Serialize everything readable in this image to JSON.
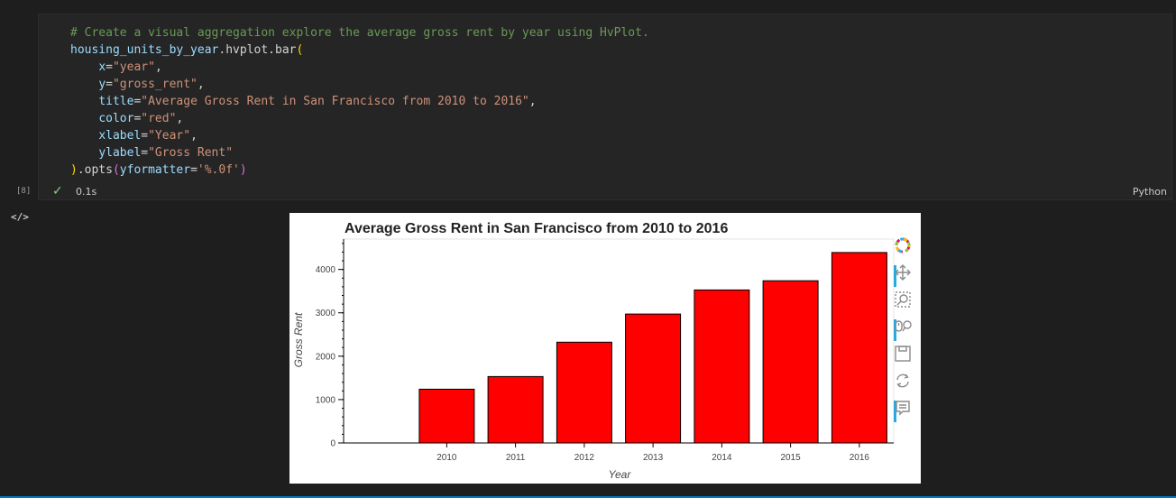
{
  "cell": {
    "code_lines": [
      "# Create a visual aggregation explore the average gross rent by year using HvPlot.",
      "housing_units_by_year.hvplot.bar(",
      "    x=\"year\",",
      "    y=\"gross_rent\",",
      "    title=\"Average Gross Rent in San Francisco from 2010 to 2016\",",
      "    color=\"red\",",
      "    xlabel=\"Year\",",
      "    ylabel=\"Gross Rent\"",
      ").opts(yformatter='%.0f')"
    ],
    "execution_count": "[8]",
    "status_icon": "check-icon",
    "exec_time": "0.1s",
    "language": "Python"
  },
  "output": {
    "icon": "code-icon",
    "icon_text": "</>"
  },
  "chart_data": {
    "type": "bar",
    "title": "Average Gross Rent in San Francisco from 2010 to 2016",
    "xlabel": "Year",
    "ylabel": "Gross Rent",
    "categories": [
      "2010",
      "2011",
      "2012",
      "2013",
      "2014",
      "2015",
      "2016"
    ],
    "values": [
      1239,
      1530,
      2324,
      2971,
      3528,
      3739,
      4391
    ],
    "ylim": [
      0,
      4700
    ],
    "yticks": [
      0,
      1000,
      2000,
      3000,
      4000
    ],
    "bar_color": "#ff0000",
    "grid": false
  },
  "toolbar": {
    "tools": [
      {
        "name": "bokeh-logo-icon",
        "active": false
      },
      {
        "name": "pan-icon",
        "active": true
      },
      {
        "name": "box-zoom-icon",
        "active": false
      },
      {
        "name": "wheel-zoom-icon",
        "active": true
      },
      {
        "name": "save-icon",
        "active": false
      },
      {
        "name": "reset-icon",
        "active": false
      },
      {
        "name": "hover-icon",
        "active": true
      }
    ]
  }
}
